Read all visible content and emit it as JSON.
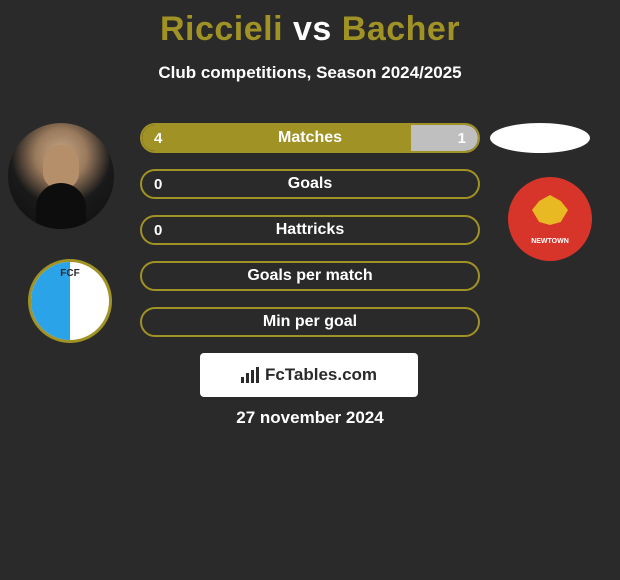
{
  "title": {
    "player1": "Riccieli",
    "vs": "vs",
    "player2": "Bacher"
  },
  "subtitle": "Club competitions, Season 2024/2025",
  "colors": {
    "accent": "#a09225",
    "accent_bright": "#b0a030",
    "background": "#2a2a2a",
    "text": "#ffffff",
    "right_muted": "#8a8a8a"
  },
  "stats": [
    {
      "label": "Matches",
      "left_val": "4",
      "right_val": "1",
      "left_pct": 80,
      "right_pct": 20,
      "left_fill": "#a09225",
      "right_fill": "#bfbfbf",
      "border": "#a09225"
    },
    {
      "label": "Goals",
      "left_val": "0",
      "right_val": "",
      "left_pct": 0,
      "right_pct": 0,
      "left_fill": "#a09225",
      "right_fill": "#bfbfbf",
      "border": "#a09225"
    },
    {
      "label": "Hattricks",
      "left_val": "0",
      "right_val": "",
      "left_pct": 0,
      "right_pct": 0,
      "left_fill": "#a09225",
      "right_fill": "#bfbfbf",
      "border": "#a09225"
    },
    {
      "label": "Goals per match",
      "left_val": "",
      "right_val": "",
      "left_pct": 0,
      "right_pct": 0,
      "left_fill": "#a09225",
      "right_fill": "#bfbfbf",
      "border": "#a09225"
    },
    {
      "label": "Min per goal",
      "left_val": "",
      "right_val": "",
      "left_pct": 0,
      "right_pct": 0,
      "left_fill": "#a09225",
      "right_fill": "#bfbfbf",
      "border": "#a09225"
    }
  ],
  "branding": {
    "text": "FcTables.com"
  },
  "date": "27 november 2024",
  "club_left": {
    "name": "FCF",
    "primary": "#2aa3e8",
    "secondary": "#ffffff",
    "border": "#a09225"
  },
  "club_right": {
    "name": "NEWTOWN",
    "primary": "#d8352a",
    "accent": "#e8b923"
  }
}
